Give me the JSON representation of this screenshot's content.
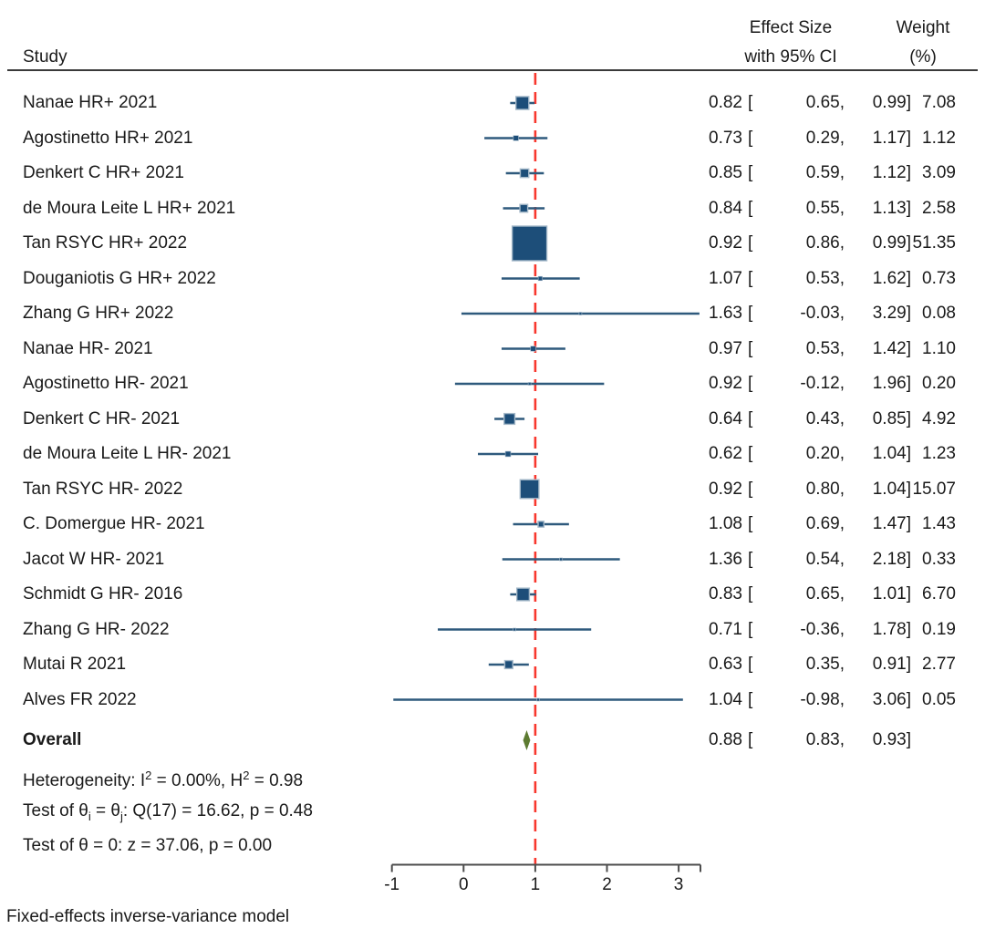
{
  "footer": "Fixed-effects inverse-variance model",
  "colors": {
    "marker_fill": "#1d4e79",
    "marker_border": "#a5b9c9",
    "ci_line": "#2f5a7d",
    "ref_line": "#f8382e",
    "diamond": "#5d7b31",
    "axis": "#4d4d4d",
    "text": "#1a1a1a",
    "header_rule": "#3a3a3a"
  },
  "chart_data": {
    "type": "forest",
    "columns": {
      "study": "Study",
      "effect_line1": "Effect Size",
      "effect_line2": "with 95% CI",
      "weight_line1": "Weight",
      "weight_line2": "(%)"
    },
    "x_axis": {
      "ticks": [
        -1,
        0,
        1,
        2,
        3
      ],
      "range": [
        -1,
        3.3
      ],
      "ref_line_x": 1,
      "ref_line_style": "dashed-red"
    },
    "studies": [
      {
        "label": "Nanae HR+ 2021",
        "es": 0.82,
        "lo": 0.65,
        "hi": 0.99,
        "weight": 7.08
      },
      {
        "label": "Agostinetto HR+ 2021",
        "es": 0.73,
        "lo": 0.29,
        "hi": 1.17,
        "weight": 1.12
      },
      {
        "label": "Denkert C HR+ 2021",
        "es": 0.85,
        "lo": 0.59,
        "hi": 1.12,
        "weight": 3.09
      },
      {
        "label": "de Moura Leite L HR+ 2021",
        "es": 0.84,
        "lo": 0.55,
        "hi": 1.13,
        "weight": 2.58
      },
      {
        "label": "Tan RSYC HR+ 2022",
        "es": 0.92,
        "lo": 0.86,
        "hi": 0.99,
        "weight": 51.35
      },
      {
        "label": "Douganiotis G HR+ 2022",
        "es": 1.07,
        "lo": 0.53,
        "hi": 1.62,
        "weight": 0.73
      },
      {
        "label": "Zhang G HR+ 2022",
        "es": 1.63,
        "lo": -0.03,
        "hi": 3.29,
        "weight": 0.08
      },
      {
        "label": "Nanae HR- 2021",
        "es": 0.97,
        "lo": 0.53,
        "hi": 1.42,
        "weight": 1.1
      },
      {
        "label": "Agostinetto HR- 2021",
        "es": 0.92,
        "lo": -0.12,
        "hi": 1.96,
        "weight": 0.2
      },
      {
        "label": "Denkert C HR- 2021",
        "es": 0.64,
        "lo": 0.43,
        "hi": 0.85,
        "weight": 4.92
      },
      {
        "label": "de Moura Leite L HR- 2021",
        "es": 0.62,
        "lo": 0.2,
        "hi": 1.04,
        "weight": 1.23
      },
      {
        "label": "Tan RSYC HR- 2022",
        "es": 0.92,
        "lo": 0.8,
        "hi": 1.04,
        "weight": 15.07
      },
      {
        "label": "C. Domergue HR- 2021",
        "es": 1.08,
        "lo": 0.69,
        "hi": 1.47,
        "weight": 1.43
      },
      {
        "label": "Jacot W HR- 2021",
        "es": 1.36,
        "lo": 0.54,
        "hi": 2.18,
        "weight": 0.33
      },
      {
        "label": "Schmidt G HR- 2016",
        "es": 0.83,
        "lo": 0.65,
        "hi": 1.01,
        "weight": 6.7
      },
      {
        "label": "Zhang G HR- 2022",
        "es": 0.71,
        "lo": -0.36,
        "hi": 1.78,
        "weight": 0.19
      },
      {
        "label": "Mutai R 2021",
        "es": 0.63,
        "lo": 0.35,
        "hi": 0.91,
        "weight": 2.77
      },
      {
        "label": "Alves FR 2022",
        "es": 1.04,
        "lo": -0.98,
        "hi": 3.06,
        "weight": 0.05
      }
    ],
    "overall": {
      "label": "Overall",
      "es": 0.88,
      "lo": 0.83,
      "hi": 0.93
    },
    "stats": [
      [
        {
          "t": "Heterogeneity: I"
        },
        {
          "t": "2",
          "s": "sup"
        },
        {
          "t": " = 0.00%, H"
        },
        {
          "t": "2",
          "s": "sup"
        },
        {
          "t": " = 0.98"
        }
      ],
      [
        {
          "t": "Test of θ"
        },
        {
          "t": "i",
          "s": "sub"
        },
        {
          "t": " = θ"
        },
        {
          "t": "j",
          "s": "sub"
        },
        {
          "t": ": Q(17) = 16.62, p = 0.48"
        }
      ],
      [
        {
          "t": "Test of θ = 0: z = 37.06, p = 0.00"
        }
      ]
    ]
  }
}
